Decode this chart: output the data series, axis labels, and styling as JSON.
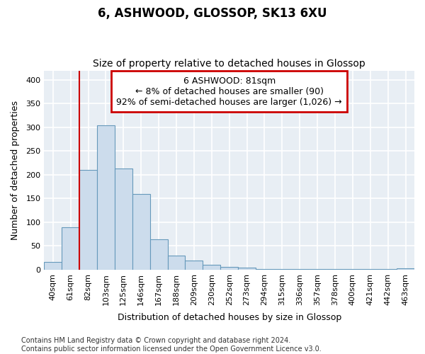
{
  "title": "6, ASHWOOD, GLOSSOP, SK13 6XU",
  "subtitle": "Size of property relative to detached houses in Glossop",
  "xlabel": "Distribution of detached houses by size in Glossop",
  "ylabel": "Number of detached properties",
  "categories": [
    "40sqm",
    "61sqm",
    "82sqm",
    "103sqm",
    "125sqm",
    "146sqm",
    "167sqm",
    "188sqm",
    "209sqm",
    "230sqm",
    "252sqm",
    "273sqm",
    "294sqm",
    "315sqm",
    "336sqm",
    "357sqm",
    "378sqm",
    "400sqm",
    "421sqm",
    "442sqm",
    "463sqm"
  ],
  "values": [
    16,
    90,
    211,
    305,
    213,
    160,
    64,
    30,
    20,
    10,
    6,
    4,
    1,
    2,
    1,
    2,
    2,
    1,
    2,
    1,
    3
  ],
  "bar_color": "#ccdcec",
  "bar_edge_color": "#6699bb",
  "vline_color": "#cc0000",
  "annotation_text": "6 ASHWOOD: 81sqm\n← 8% of detached houses are smaller (90)\n92% of semi-detached houses are larger (1,026) →",
  "annotation_box_facecolor": "#ffffff",
  "annotation_box_edgecolor": "#cc0000",
  "ylim": [
    0,
    420
  ],
  "yticks": [
    0,
    50,
    100,
    150,
    200,
    250,
    300,
    350,
    400
  ],
  "plot_bg_color": "#e8eef4",
  "grid_color": "#ffffff",
  "fig_bg_color": "#ffffff",
  "footer": "Contains HM Land Registry data © Crown copyright and database right 2024.\nContains public sector information licensed under the Open Government Licence v3.0.",
  "title_fontsize": 12,
  "subtitle_fontsize": 10,
  "xlabel_fontsize": 9,
  "ylabel_fontsize": 9,
  "tick_fontsize": 8,
  "annot_fontsize": 9,
  "footer_fontsize": 7
}
